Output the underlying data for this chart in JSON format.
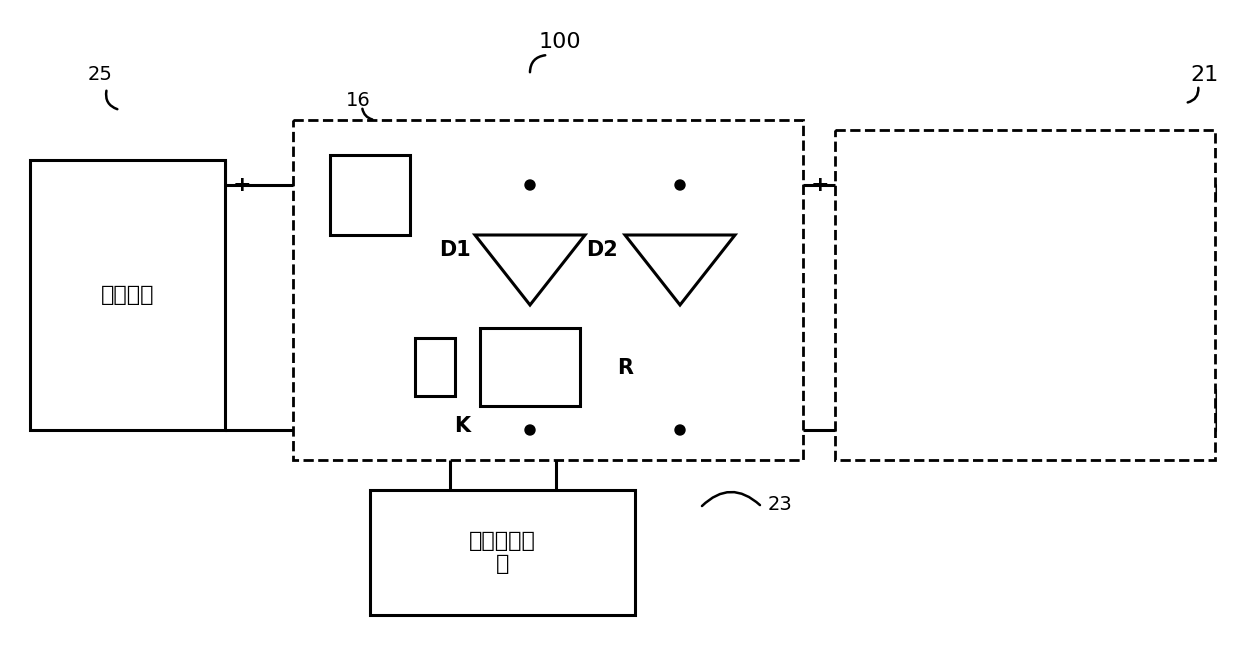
{
  "bg_color": "#ffffff",
  "lc": "#000000",
  "lw": 2.2,
  "box_power_label": "抱闸电源",
  "box_control_label": "抱闸控制设\n备",
  "label_25": "25",
  "label_100": "100",
  "label_16": "16",
  "label_21": "21",
  "label_23": "23",
  "label_D1": "D1",
  "label_D2": "D2",
  "label_K": "K",
  "label_R": "R",
  "fs": 14
}
